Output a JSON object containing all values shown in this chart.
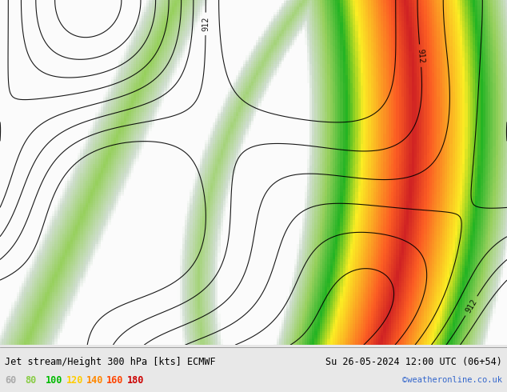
{
  "title_left": "Jet stream/Height 300 hPa [kts] ECMWF",
  "title_right": "Su 26-05-2024 12:00 UTC (06+54)",
  "copyright": "©weatheronline.co.uk",
  "legend_values": [
    "60",
    "80",
    "100",
    "120",
    "140",
    "160",
    "180"
  ],
  "legend_colors": [
    "#aaaaaa",
    "#88cc44",
    "#00bb00",
    "#ffcc00",
    "#ff8800",
    "#ff4400",
    "#cc0000"
  ],
  "bg_color": "#e8e8e8",
  "map_bg": "#e0e8f0",
  "figsize": [
    6.34,
    4.9
  ],
  "dpi": 100
}
